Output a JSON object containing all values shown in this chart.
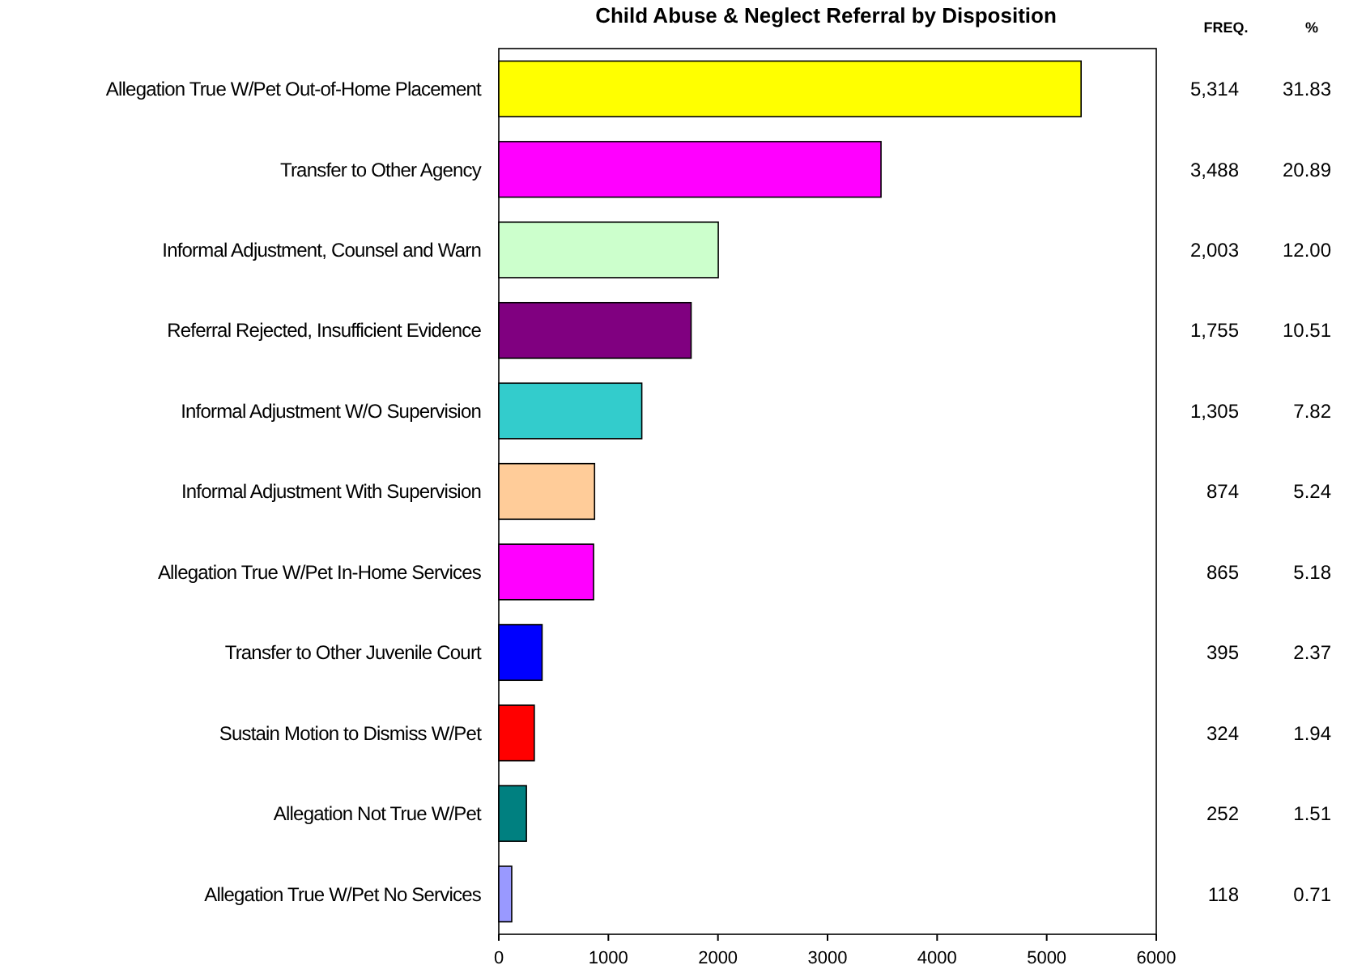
{
  "chart_data": {
    "type": "bar",
    "orientation": "horizontal",
    "title": "Child Abuse & Neglect Referral by Disposition",
    "categories": [
      "Allegation True W/Pet Out-of-Home Placement",
      "Transfer to Other Agency",
      "Informal Adjustment, Counsel and Warn",
      "Referral Rejected, Insufficient Evidence",
      "Informal Adjustment W/O Supervision",
      "Informal Adjustment With Supervision",
      "Allegation True W/Pet In-Home Services",
      "Transfer to Other Juvenile Court",
      "Sustain Motion to Dismiss W/Pet",
      "Allegation Not True W/Pet",
      "Allegation True W/Pet No Services"
    ],
    "values": [
      5314,
      3488,
      2003,
      1755,
      1305,
      874,
      865,
      395,
      324,
      252,
      118
    ],
    "colors": [
      "#ffff00",
      "#ff00ff",
      "#ccffcc",
      "#800080",
      "#33cccc",
      "#ffcc99",
      "#ff00ff",
      "#0000ff",
      "#ff0000",
      "#008080",
      "#9999ff"
    ],
    "xlim": [
      0,
      6000
    ],
    "xticks": [
      0,
      1000,
      2000,
      3000,
      4000,
      5000,
      6000
    ],
    "value_labels": [
      "5,314",
      "3,488",
      "2,003",
      "1,755",
      "1,305",
      "874",
      "865",
      "395",
      "324",
      "252",
      "118"
    ],
    "grid": false,
    "annotations": [
      "FREQ.",
      "%",
      "31.83",
      "20.89",
      "12.00",
      "10.51",
      "7.82",
      "5.24",
      "5.18",
      "2.37",
      "1.94",
      "1.51",
      "0.71"
    ]
  }
}
